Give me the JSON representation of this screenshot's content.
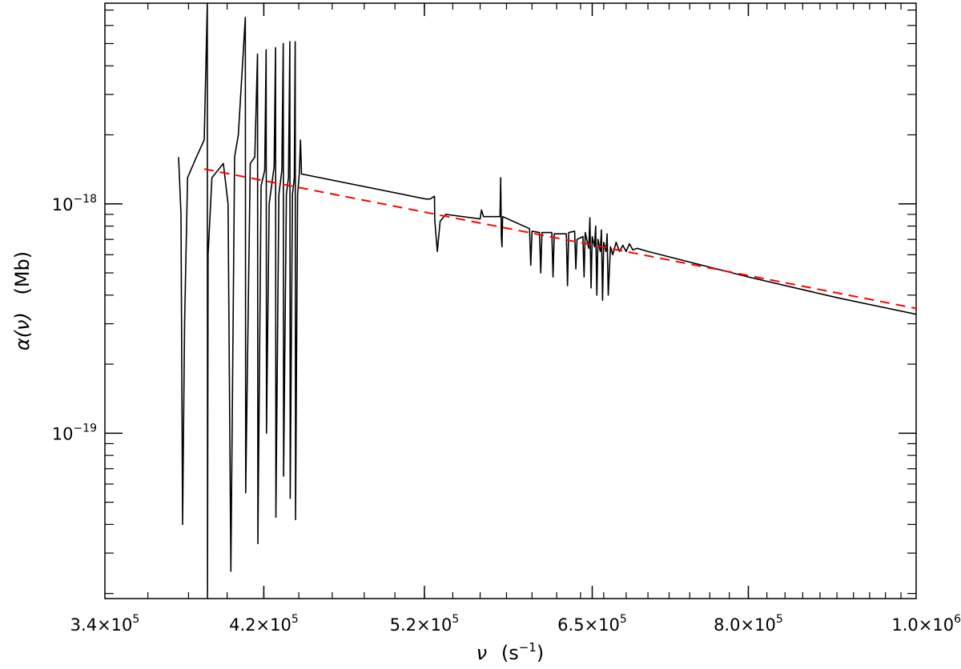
{
  "chart_data": {
    "type": "line",
    "title": "",
    "xlabel": {
      "sym": "ν",
      "pre": "(s",
      "sup": "−1",
      "post": ")"
    },
    "ylabel": {
      "sym": "α(ν)",
      "unit": "(Mb)"
    },
    "xscale": "log",
    "yscale": "log",
    "xlim": [
      340000,
      1000000
    ],
    "ylim": [
      1.9e-20,
      7.5e-18
    ],
    "grid": false,
    "legend": "none",
    "x_ticks": [
      {
        "value": 340000,
        "mant": "3.4×10",
        "exp": "5"
      },
      {
        "value": 420000,
        "mant": "4.2×10",
        "exp": "5"
      },
      {
        "value": 520000,
        "mant": "5.2×10",
        "exp": "5"
      },
      {
        "value": 650000,
        "mant": "6.5×10",
        "exp": "5"
      },
      {
        "value": 800000,
        "mant": "8.0×10",
        "exp": "5"
      },
      {
        "value": 1000000,
        "mant": "1.0×10",
        "exp": "6"
      }
    ],
    "y_ticks": [
      {
        "value": 1e-18,
        "mant": "10",
        "exp": "−18"
      },
      {
        "value": 1e-19,
        "mant": "10",
        "exp": "−19"
      }
    ],
    "series": [
      {
        "color": "#000000",
        "style": "solid",
        "points": [
          [
            375000,
            1.6e-18
          ],
          [
            376200,
            9e-19
          ],
          [
            377000,
            4e-20
          ],
          [
            378000,
            3e-19
          ],
          [
            379500,
            1.3e-18
          ],
          [
            384000,
            1.6e-18
          ],
          [
            388000,
            1.9e-18
          ],
          [
            389600,
            7.5e-18
          ],
          [
            389700,
            1.9e-20
          ],
          [
            390000,
            6e-19
          ],
          [
            392000,
            1.3e-18
          ],
          [
            398000,
            1.5e-18
          ],
          [
            400500,
            1e-18
          ],
          [
            402000,
            2.5e-20
          ],
          [
            404000,
            1.6e-18
          ],
          [
            406000,
            2e-18
          ],
          [
            409800,
            6.5e-18
          ],
          [
            410000,
            5.5e-20
          ],
          [
            412500,
            1.5e-18
          ],
          [
            415000,
            1.6e-18
          ],
          [
            416500,
            4.5e-18
          ],
          [
            416700,
            3.3e-20
          ],
          [
            418500,
            1.2e-18
          ],
          [
            420500,
            1.4e-18
          ],
          [
            421300,
            4.7e-18
          ],
          [
            421500,
            1e-19
          ],
          [
            423000,
            1e-18
          ],
          [
            425800,
            1.45e-18
          ],
          [
            426600,
            4.8e-18
          ],
          [
            426800,
            4.3e-20
          ],
          [
            428500,
            1.1e-18
          ],
          [
            430200,
            1.4e-18
          ],
          [
            431000,
            5e-18
          ],
          [
            431200,
            6.5e-20
          ],
          [
            432800,
            1.1e-18
          ],
          [
            434000,
            1.3e-18
          ],
          [
            434800,
            5.1e-18
          ],
          [
            435000,
            5.2e-20
          ],
          [
            436300,
            1.1e-18
          ],
          [
            437400,
            1.3e-18
          ],
          [
            437900,
            5.1e-18
          ],
          [
            438100,
            4.2e-20
          ],
          [
            439300,
            1.1e-18
          ],
          [
            440300,
            1.35e-18
          ],
          [
            441000,
            1.9e-18
          ],
          [
            441600,
            1.35e-18
          ],
          [
            521000,
            1.05e-18
          ],
          [
            524000,
            1.05e-18
          ],
          [
            527000,
            1.08e-18
          ],
          [
            527200,
            8.5e-19
          ],
          [
            529000,
            6.2e-19
          ],
          [
            531000,
            8.4e-19
          ],
          [
            535000,
            9e-19
          ],
          [
            560000,
            8.6e-19
          ],
          [
            561000,
            9.4e-19
          ],
          [
            562500,
            8.8e-19
          ],
          [
            575000,
            8.8e-19
          ],
          [
            575500,
            1.3e-18
          ],
          [
            576000,
            7.2e-19
          ],
          [
            576500,
            6.5e-19
          ],
          [
            577000,
            8.8e-19
          ],
          [
            598000,
            7.8e-19
          ],
          [
            599000,
            5.4e-19
          ],
          [
            600000,
            7.6e-19
          ],
          [
            606000,
            7.5e-19
          ],
          [
            607000,
            5e-19
          ],
          [
            608000,
            7.5e-19
          ],
          [
            616000,
            7.5e-19
          ],
          [
            617000,
            4.8e-19
          ],
          [
            618000,
            7.4e-19
          ],
          [
            628000,
            7.4e-19
          ],
          [
            629000,
            4.4e-19
          ],
          [
            630000,
            7.5e-19
          ],
          [
            635000,
            7.6e-19
          ],
          [
            636000,
            5.2e-19
          ],
          [
            637000,
            7e-19
          ],
          [
            642000,
            7.2e-19
          ],
          [
            643000,
            4.8e-19
          ],
          [
            644000,
            7.5e-19
          ],
          [
            647000,
            6.4e-19
          ],
          [
            648000,
            8.7e-19
          ],
          [
            649000,
            4.3e-19
          ],
          [
            650000,
            7.2e-19
          ],
          [
            652000,
            6.5e-19
          ],
          [
            653000,
            8e-19
          ],
          [
            654000,
            4e-19
          ],
          [
            655000,
            7e-19
          ],
          [
            657000,
            6.2e-19
          ],
          [
            658000,
            7.7e-19
          ],
          [
            659000,
            3.8e-19
          ],
          [
            660000,
            6.8e-19
          ],
          [
            662000,
            6.2e-19
          ],
          [
            663000,
            7.4e-19
          ],
          [
            664000,
            4e-19
          ],
          [
            666000,
            6.5e-19
          ],
          [
            668000,
            6e-19
          ],
          [
            671000,
            6.8e-19
          ],
          [
            674000,
            6.2e-19
          ],
          [
            677000,
            6.6e-19
          ],
          [
            680000,
            6.2e-19
          ],
          [
            683000,
            6.7e-19
          ],
          [
            686000,
            6.3e-19
          ],
          [
            690000,
            6.4e-19
          ],
          [
            700000,
            6.2e-19
          ],
          [
            800000,
            4.8e-19
          ],
          [
            900000,
            3.9e-19
          ],
          [
            1000000,
            3.3e-19
          ]
        ]
      },
      {
        "color": "#ff0000",
        "style": "dashed",
        "points": [
          [
            388000,
            1.42e-18
          ],
          [
            1000000,
            3.5e-19
          ]
        ]
      }
    ]
  }
}
